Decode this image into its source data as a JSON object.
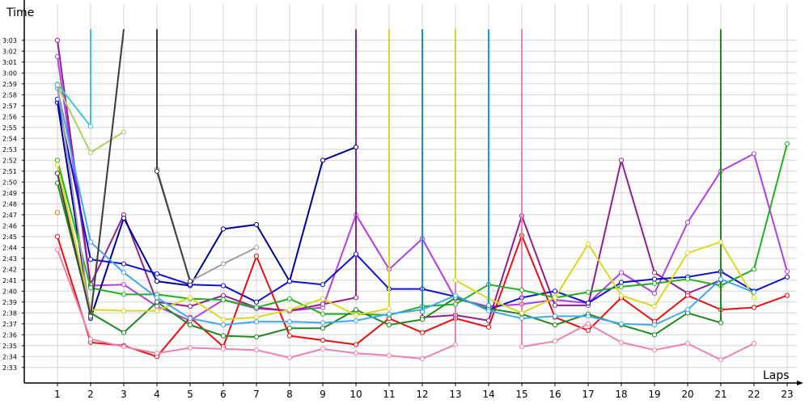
{
  "chart_data": {
    "type": "line",
    "xlabel": "Laps",
    "ylabel": "Time",
    "grid": true,
    "legend": "none",
    "x_ticks": [
      "1",
      "2",
      "3",
      "4",
      "5",
      "6",
      "7",
      "8",
      "9",
      "10",
      "11",
      "12",
      "13",
      "14",
      "15",
      "16",
      "17",
      "18",
      "19",
      "20",
      "21",
      "22",
      "23"
    ],
    "y_ticks": [
      "2:33",
      "2:34",
      "2:35",
      "2:36",
      "2:37",
      "2:38",
      "2:39",
      "2:40",
      "2:41",
      "2:42",
      "2:43",
      "2:44",
      "2:45",
      "2:46",
      "2:47",
      "2:48",
      "2:49",
      "2:50",
      "2:51",
      "2:52",
      "2:53",
      "2:54",
      "2:55",
      "2:56",
      "2:57",
      "2:58",
      "2:59",
      "3:00",
      "3:01",
      "3:02",
      "3:03"
    ],
    "ylim_seconds": [
      150,
      184
    ],
    "series": [
      {
        "color": "#b040e0",
        "values": [
          [
            1,
            181.5
          ],
          [
            2,
            160.5
          ],
          [
            3,
            160.6
          ],
          [
            4,
            158.6
          ],
          [
            5,
            157.3
          ],
          [
            6,
            159.2
          ],
          [
            7,
            158.4
          ],
          [
            8,
            158.2
          ],
          [
            9,
            158.5
          ],
          [
            10,
            167
          ],
          [
            11,
            162
          ],
          [
            12,
            164.8
          ],
          [
            13,
            159.3
          ],
          [
            14,
            158.6
          ],
          [
            15,
            158.8
          ],
          [
            16,
            159.2
          ],
          [
            17,
            158.9
          ],
          [
            18,
            161.7
          ],
          [
            19,
            159.8
          ],
          [
            20,
            166.3
          ],
          [
            21,
            171
          ],
          [
            22,
            172.6
          ],
          [
            23,
            161.8
          ]
        ]
      },
      {
        "color": "#902090",
        "values": [
          [
            1,
            183
          ],
          [
            2,
            160.6
          ],
          [
            3,
            167
          ],
          [
            4,
            159
          ],
          [
            5,
            158.6
          ],
          [
            6,
            159.6
          ],
          [
            7,
            158.5
          ],
          [
            8,
            158.2
          ],
          [
            9,
            158.8
          ],
          [
            10,
            159.4
          ],
          [
            10,
            184
          ]
        ]
      },
      {
        "color": "#902090",
        "values": [
          [
            12,
            184
          ],
          [
            12,
            157.6
          ],
          [
            13,
            157.8
          ],
          [
            14,
            157.3
          ],
          [
            15,
            166.9
          ],
          [
            16,
            158.7
          ],
          [
            17,
            158.7
          ],
          [
            18,
            172
          ],
          [
            19,
            161.7
          ],
          [
            20,
            159.8
          ],
          [
            21,
            161
          ]
        ]
      },
      {
        "color": "#000090",
        "values": [
          [
            1,
            177.3
          ],
          [
            2,
            157.5
          ],
          [
            3,
            166.7
          ],
          [
            4,
            160.9
          ],
          [
            5,
            160.5
          ],
          [
            6,
            165.7
          ],
          [
            7,
            166.1
          ],
          [
            8,
            160.9
          ],
          [
            9,
            172
          ],
          [
            10,
            173.2
          ]
        ]
      },
      {
        "color": "#1010d0",
        "values": [
          [
            1,
            177.6
          ],
          [
            2,
            162.9
          ],
          [
            3,
            162.5
          ],
          [
            4,
            161.6
          ],
          [
            5,
            160.6
          ],
          [
            6,
            160.5
          ],
          [
            7,
            159
          ],
          [
            8,
            160.9
          ],
          [
            9,
            160.6
          ],
          [
            10,
            163.4
          ],
          [
            11,
            160.2
          ],
          [
            12,
            160.2
          ],
          [
            13,
            159.5
          ],
          [
            14,
            158.3
          ],
          [
            15,
            159.4
          ],
          [
            16,
            160
          ],
          [
            17,
            158.9
          ],
          [
            18,
            160.8
          ],
          [
            19,
            161.1
          ],
          [
            20,
            161.3
          ],
          [
            21,
            161.8
          ],
          [
            22,
            160
          ],
          [
            23,
            161.3
          ]
        ]
      },
      {
        "color": "#e81010",
        "values": [
          [
            1,
            165
          ],
          [
            2,
            155.3
          ],
          [
            3,
            155
          ],
          [
            4,
            154
          ],
          [
            5,
            157.6
          ],
          [
            6,
            154.9
          ],
          [
            7,
            163.2
          ],
          [
            8,
            155.9
          ],
          [
            9,
            155.5
          ],
          [
            10,
            155.1
          ],
          [
            11,
            157.5
          ],
          [
            12,
            156.2
          ],
          [
            13,
            157.5
          ],
          [
            14,
            156.7
          ],
          [
            15,
            165.1
          ],
          [
            16,
            157.6
          ],
          [
            17,
            156.4
          ],
          [
            18,
            159.4
          ],
          [
            19,
            157.2
          ],
          [
            20,
            159.6
          ],
          [
            21,
            158.3
          ],
          [
            22,
            158.5
          ],
          [
            23,
            159.6
          ]
        ]
      },
      {
        "color": "#f080b0",
        "values": [
          [
            1,
            163.8
          ],
          [
            2,
            155.6
          ],
          [
            3,
            154.9
          ],
          [
            4,
            154.3
          ],
          [
            5,
            154.8
          ],
          [
            6,
            154.7
          ],
          [
            7,
            154.6
          ],
          [
            8,
            153.9
          ],
          [
            9,
            154.7
          ],
          [
            10,
            154.3
          ],
          [
            11,
            154.1
          ],
          [
            12,
            153.8
          ],
          [
            13,
            155.1
          ],
          [
            13,
            184
          ]
        ]
      },
      {
        "color": "#f080b0",
        "values": [
          [
            15,
            184
          ],
          [
            15,
            154.9
          ],
          [
            16,
            155.4
          ],
          [
            17,
            157
          ],
          [
            18,
            155.3
          ],
          [
            19,
            154.6
          ],
          [
            20,
            155.2
          ],
          [
            21,
            153.7
          ],
          [
            22,
            155.2
          ]
        ]
      },
      {
        "color": "#20b020",
        "values": [
          [
            1,
            172
          ],
          [
            2,
            160.3
          ],
          [
            3,
            159.7
          ],
          [
            4,
            159.7
          ],
          [
            5,
            159.3
          ],
          [
            6,
            159.2
          ],
          [
            7,
            158.5
          ],
          [
            8,
            159.3
          ],
          [
            9,
            157.9
          ],
          [
            10,
            157.9
          ],
          [
            11,
            157.8
          ],
          [
            12,
            158.6
          ],
          [
            13,
            158.8
          ],
          [
            14,
            160.6
          ],
          [
            15,
            160.1
          ],
          [
            16,
            159.4
          ],
          [
            17,
            159.9
          ],
          [
            18,
            160.4
          ],
          [
            19,
            160.7
          ],
          [
            20,
            161.1
          ],
          [
            21,
            160.5
          ],
          [
            22,
            162
          ],
          [
            23,
            173.5
          ]
        ]
      },
      {
        "color": "#208820",
        "values": [
          [
            1,
            169.9
          ],
          [
            2,
            158
          ],
          [
            3,
            156.2
          ],
          [
            4,
            159
          ],
          [
            5,
            156.9
          ],
          [
            6,
            155.9
          ],
          [
            7,
            155.8
          ],
          [
            8,
            156.6
          ],
          [
            9,
            156.6
          ],
          [
            10,
            158.3
          ],
          [
            11,
            156.9
          ],
          [
            12,
            157.4
          ],
          [
            13,
            159.4
          ],
          [
            14,
            158.4
          ],
          [
            15,
            157.9
          ],
          [
            16,
            156.9
          ],
          [
            17,
            157.9
          ],
          [
            18,
            156.9
          ],
          [
            19,
            156
          ],
          [
            20,
            158
          ],
          [
            21,
            157.1
          ],
          [
            21,
            184
          ]
        ]
      },
      {
        "color": "#d8d820",
        "values": [
          [
            1,
            171.6
          ],
          [
            2,
            158.3
          ],
          [
            3,
            158.2
          ],
          [
            4,
            158.2
          ],
          [
            5,
            159.4
          ],
          [
            6,
            157.4
          ],
          [
            7,
            157.6
          ],
          [
            8,
            158.3
          ],
          [
            9,
            159.3
          ],
          [
            10,
            157.8
          ],
          [
            11,
            158.4
          ],
          [
            11,
            184
          ]
        ]
      },
      {
        "color": "#d8d820",
        "values": [
          [
            13,
            184
          ],
          [
            13,
            161
          ],
          [
            14,
            159.3
          ],
          [
            15,
            158
          ],
          [
            16,
            159.4
          ],
          [
            17,
            164.3
          ],
          [
            18,
            159.6
          ],
          [
            19,
            158.6
          ],
          [
            20,
            163.5
          ],
          [
            21,
            164.5
          ],
          [
            22,
            159.4
          ]
        ]
      },
      {
        "color": "#40a8f0",
        "values": [
          [
            1,
            178.6
          ],
          [
            2,
            164.5
          ],
          [
            3,
            161.7
          ],
          [
            4,
            159.4
          ],
          [
            5,
            157.5
          ],
          [
            6,
            156.9
          ],
          [
            7,
            157.2
          ],
          [
            8,
            157.2
          ],
          [
            9,
            157.1
          ],
          [
            10,
            157.3
          ],
          [
            11,
            157.9
          ],
          [
            12,
            158.3
          ],
          [
            13,
            159.6
          ],
          [
            14,
            158.2
          ],
          [
            15,
            157.5
          ],
          [
            16,
            157.7
          ],
          [
            17,
            157.7
          ],
          [
            18,
            157
          ],
          [
            19,
            156.9
          ],
          [
            20,
            158.3
          ],
          [
            21,
            161.1
          ],
          [
            22,
            159.9
          ]
        ]
      },
      {
        "color": "#1090e0",
        "values": [
          [
            12,
            158.1
          ],
          [
            12,
            184
          ]
        ]
      },
      {
        "color": "#1898e0",
        "values": [
          [
            14,
            184
          ],
          [
            14,
            158.7
          ]
        ]
      },
      {
        "color": "#40c8c8",
        "values": [
          [
            1,
            179
          ],
          [
            2,
            175.1
          ],
          [
            2,
            184
          ]
        ]
      },
      {
        "color": "#40c8c8",
        "values": [
          [
            4,
            184
          ],
          [
            4,
            171.1
          ]
        ]
      },
      {
        "color": "#a8d060",
        "values": [
          [
            1,
            178.8
          ],
          [
            2,
            172.7
          ],
          [
            3,
            174.6
          ]
        ]
      },
      {
        "color": "#a0a0a0",
        "values": [
          [
            1,
            178.9
          ],
          [
            2,
            157.6
          ],
          [
            3,
            184
          ]
        ]
      },
      {
        "color": "#a0a0a0",
        "values": [
          [
            4,
            171.2
          ],
          [
            5,
            160.9
          ],
          [
            6,
            162.5
          ],
          [
            7,
            164
          ]
        ]
      },
      {
        "color": "#404040",
        "values": [
          [
            1,
            170.8
          ],
          [
            2,
            157.7
          ],
          [
            3,
            184
          ]
        ]
      },
      {
        "color": "#404040",
        "values": [
          [
            4,
            184
          ],
          [
            4,
            171
          ],
          [
            5,
            160.9
          ]
        ]
      },
      {
        "color": "#e08010",
        "values": [
          [
            1,
            167.2
          ]
        ]
      }
    ]
  }
}
